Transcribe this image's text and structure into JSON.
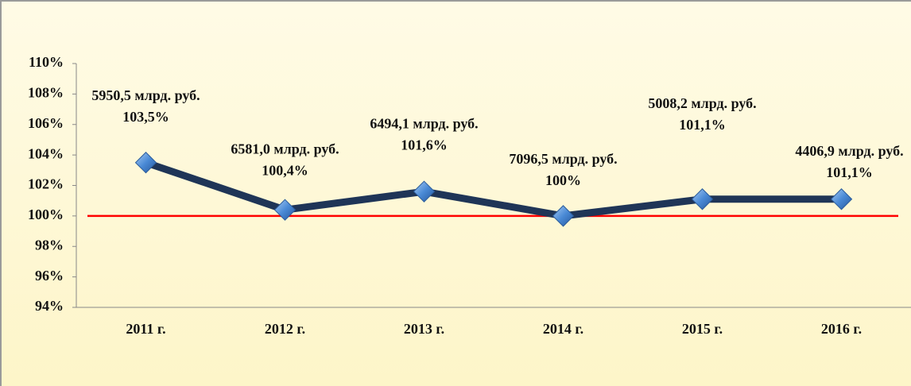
{
  "chart_data": {
    "type": "line",
    "categories": [
      "2011 г.",
      "2012 г.",
      "2013 г.",
      "2014 г.",
      "2015 г.",
      "2016 г."
    ],
    "values": [
      103.5,
      100.4,
      101.6,
      100,
      101.1,
      101.1
    ],
    "value_labels": [
      "103,5%",
      "100,4%",
      "101,6%",
      "100%",
      "101,1%",
      "101,1%"
    ],
    "point_notes": [
      "5950,5 млрд. руб.",
      "6581,0 млрд. руб.",
      "6494,1 млрд. руб.",
      "7096,5 млрд. руб.",
      "5008,2 млрд. руб.",
      "4406,9 млрд. руб."
    ],
    "color": "#1f3557",
    "marker_color": "#4a8ad6",
    "reference_line": {
      "value": 100,
      "color": "#ff0000"
    },
    "ylim": [
      94,
      110
    ],
    "yticks": [
      {
        "value": 94,
        "label": "94%"
      },
      {
        "value": 96,
        "label": "96%"
      },
      {
        "value": 98,
        "label": "98%"
      },
      {
        "value": 100,
        "label": "100%"
      },
      {
        "value": 102,
        "label": "102%"
      },
      {
        "value": 104,
        "label": "104%"
      },
      {
        "value": 106,
        "label": "106%"
      },
      {
        "value": 108,
        "label": "108%"
      },
      {
        "value": 110,
        "label": "110%"
      }
    ],
    "grid": false
  }
}
